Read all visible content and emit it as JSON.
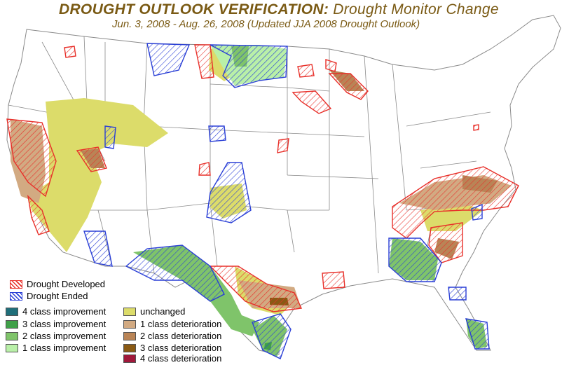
{
  "title": {
    "main": "DROUGHT OUTLOOK VERIFICATION:",
    "secondary": "Drought Monitor Change",
    "subtitle": "Jun. 3, 2008 - Aug. 26, 2008 (Updated JJA 2008 Drought Outlook)"
  },
  "legend": {
    "hatch": [
      {
        "label": "Drought Developed",
        "color": "#e8302a"
      },
      {
        "label": "Drought Ended",
        "color": "#2a3fd6"
      }
    ],
    "classes": [
      {
        "label": "4 class improvement",
        "color": "#1f6f7a"
      },
      {
        "label": "3 class improvement",
        "color": "#3fa048"
      },
      {
        "label": "2 class improvement",
        "color": "#7fc46a"
      },
      {
        "label": "1 class improvement",
        "color": "#b9f0a8"
      },
      {
        "label": "unchanged",
        "color": "#dcdc6a"
      },
      {
        "label": "1 class deterioration",
        "color": "#d2aa82"
      },
      {
        "label": "2 class deterioration",
        "color": "#b98456"
      },
      {
        "label": "3 class deterioration",
        "color": "#8a5a14"
      },
      {
        "label": "4 class deterioration",
        "color": "#a0183a"
      }
    ]
  },
  "colors": {
    "developed_hatch": "#e8302a",
    "ended_hatch": "#2a3fd6",
    "state_line": "#8a8a8a",
    "title": "#7a5a14"
  }
}
